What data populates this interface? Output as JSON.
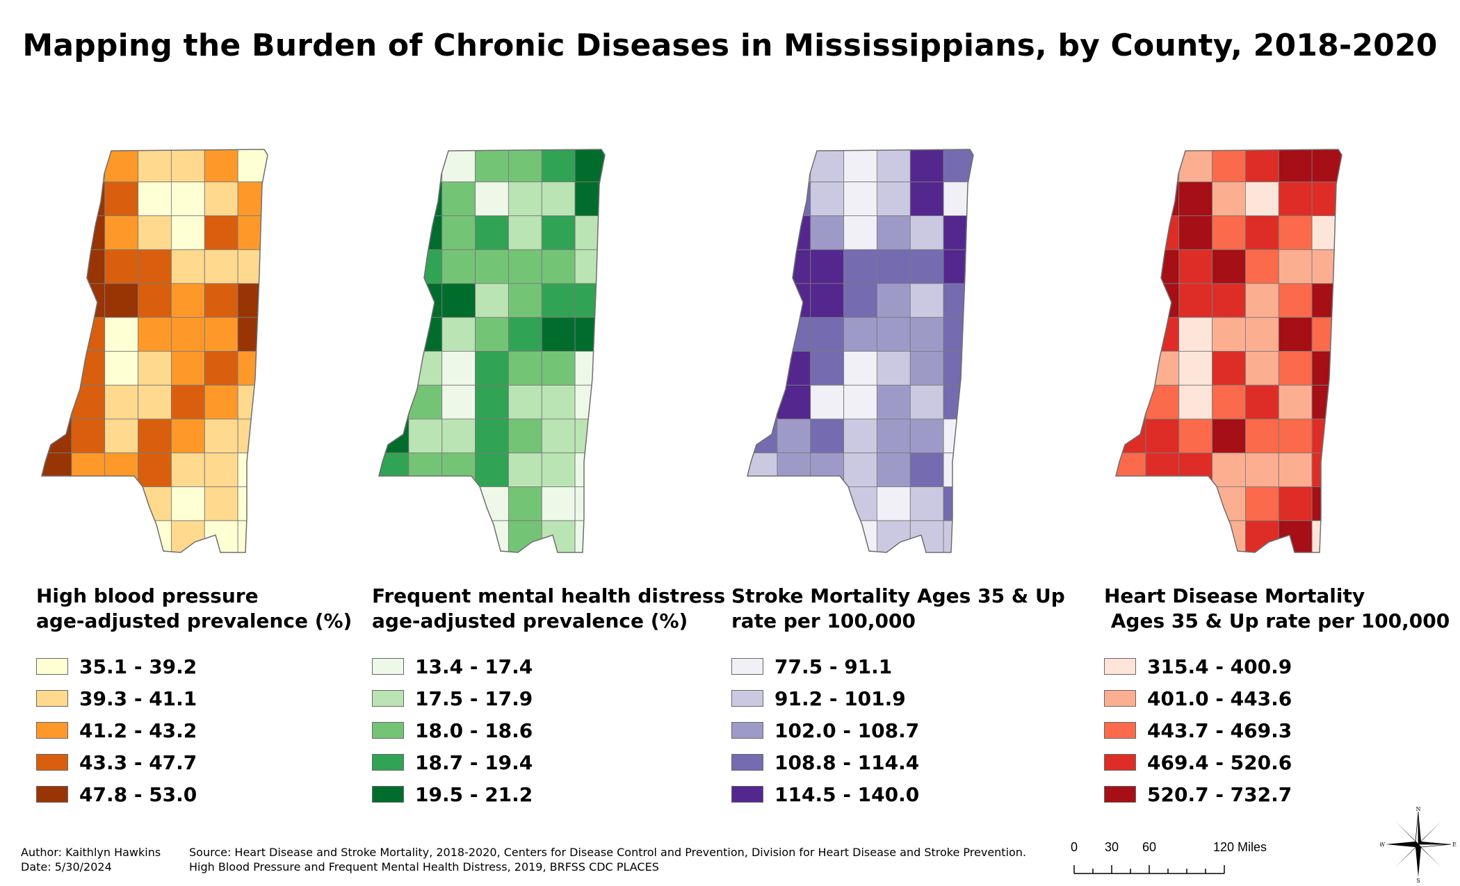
{
  "title": "Mapping the Burden of Chronic Diseases in Mississippians, by County, 2018-2020",
  "maps": [
    {
      "id": "high-blood-pressure",
      "legend_title": "High blood pressure\nage-adjusted prevalence (%)",
      "classes": [
        {
          "label": "35.1 - 39.2",
          "color": "#ffffd4"
        },
        {
          "label": "39.3 - 41.1",
          "color": "#fed98e"
        },
        {
          "label": "41.2 - 43.2",
          "color": "#fe9929"
        },
        {
          "label": "43.3 - 47.7",
          "color": "#d95f0e"
        },
        {
          "label": "47.8 - 53.0",
          "color": "#993404"
        }
      ]
    },
    {
      "id": "mental-health-distress",
      "legend_title": "Frequent mental health distress\nage-adjusted prevalence (%)",
      "classes": [
        {
          "label": "13.4 - 17.4",
          "color": "#edf8e9"
        },
        {
          "label": "17.5 - 17.9",
          "color": "#bae4b3"
        },
        {
          "label": "18.0 - 18.6",
          "color": "#74c476"
        },
        {
          "label": "18.7 - 19.4",
          "color": "#31a354"
        },
        {
          "label": "19.5 - 21.2",
          "color": "#006d2c"
        }
      ]
    },
    {
      "id": "stroke-mortality",
      "legend_title": "Stroke Mortality Ages 35 & Up\nrate per 100,000",
      "classes": [
        {
          "label": "77.5 - 91.1",
          "color": "#f2f0f7"
        },
        {
          "label": "91.2 - 101.9",
          "color": "#cbc9e2"
        },
        {
          "label": "102.0 - 108.7",
          "color": "#9e9ac8"
        },
        {
          "label": "108.8 - 114.4",
          "color": "#756bb1"
        },
        {
          "label": "114.5 - 140.0",
          "color": "#54278f"
        }
      ]
    },
    {
      "id": "heart-disease-mortality",
      "legend_title": "Heart Disease Mortality\n Ages 35 & Up rate per 100,000",
      "classes": [
        {
          "label": "315.4 - 400.9",
          "color": "#fee5d9"
        },
        {
          "label": "401.0 - 443.6",
          "color": "#fcae91"
        },
        {
          "label": "443.7 - 469.3",
          "color": "#fb6a4a"
        },
        {
          "label": "469.4 - 520.6",
          "color": "#de2d26"
        },
        {
          "label": "520.7 - 732.7",
          "color": "#a50f15"
        }
      ]
    }
  ],
  "footer": {
    "author": "Author: Kaithlyn Hawkins",
    "date": "Date: 5/30/2024",
    "source_line1": "Source: Heart Disease and Stroke Mortality, 2018-2020, Centers for Disease Control and Prevention, Division for Heart Disease and Stroke Prevention.",
    "source_line2": "High Blood Pressure and Frequent Mental Health Distress, 2019, BRFSS CDC PLACES"
  },
  "scale_bar": {
    "ticks": [
      "0",
      "30",
      "60",
      "120 Miles"
    ]
  },
  "compass": {
    "n": "N",
    "s": "S",
    "e": "E",
    "w": "W"
  }
}
